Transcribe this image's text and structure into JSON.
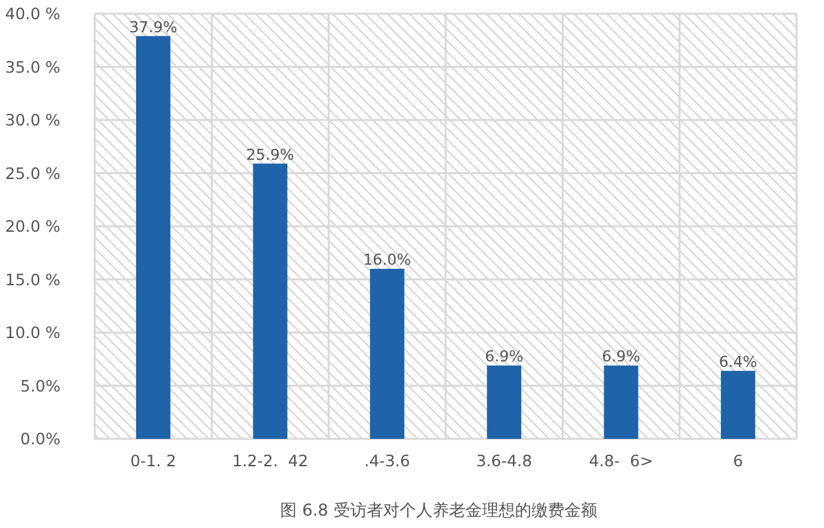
{
  "chart_data": {
    "type": "bar",
    "categories": [
      "0-1. 2",
      "1.2-2.  42",
      ".4-3.6",
      "3.6-4.8",
      "4.8-  6>",
      "6"
    ],
    "values": [
      37.9,
      25.9,
      16.0,
      6.9,
      6.9,
      6.4
    ],
    "value_labels": [
      "37.9%",
      "25.9%",
      "16.0%",
      "6.9%",
      "6.9%",
      "6.4%"
    ],
    "color": "#1f64a8",
    "ylim": [
      0,
      40
    ],
    "yticks": [
      {
        "value": 0,
        "label": "0.0%"
      },
      {
        "value": 5,
        "label": "5.0%"
      },
      {
        "value": 10,
        "label": "10.0 %"
      },
      {
        "value": 15,
        "label": "15.0 %"
      },
      {
        "value": 20,
        "label": "20.0 %"
      },
      {
        "value": 25,
        "label": "25.0 %"
      },
      {
        "value": 30,
        "label": "30.0 %"
      },
      {
        "value": 35,
        "label": "35.0 %"
      },
      {
        "value": 40,
        "label": "40.0 %"
      }
    ],
    "grid": true,
    "annotations": [
      "图 6.8 受访者对个人养老金理想的缴费金额"
    ]
  }
}
